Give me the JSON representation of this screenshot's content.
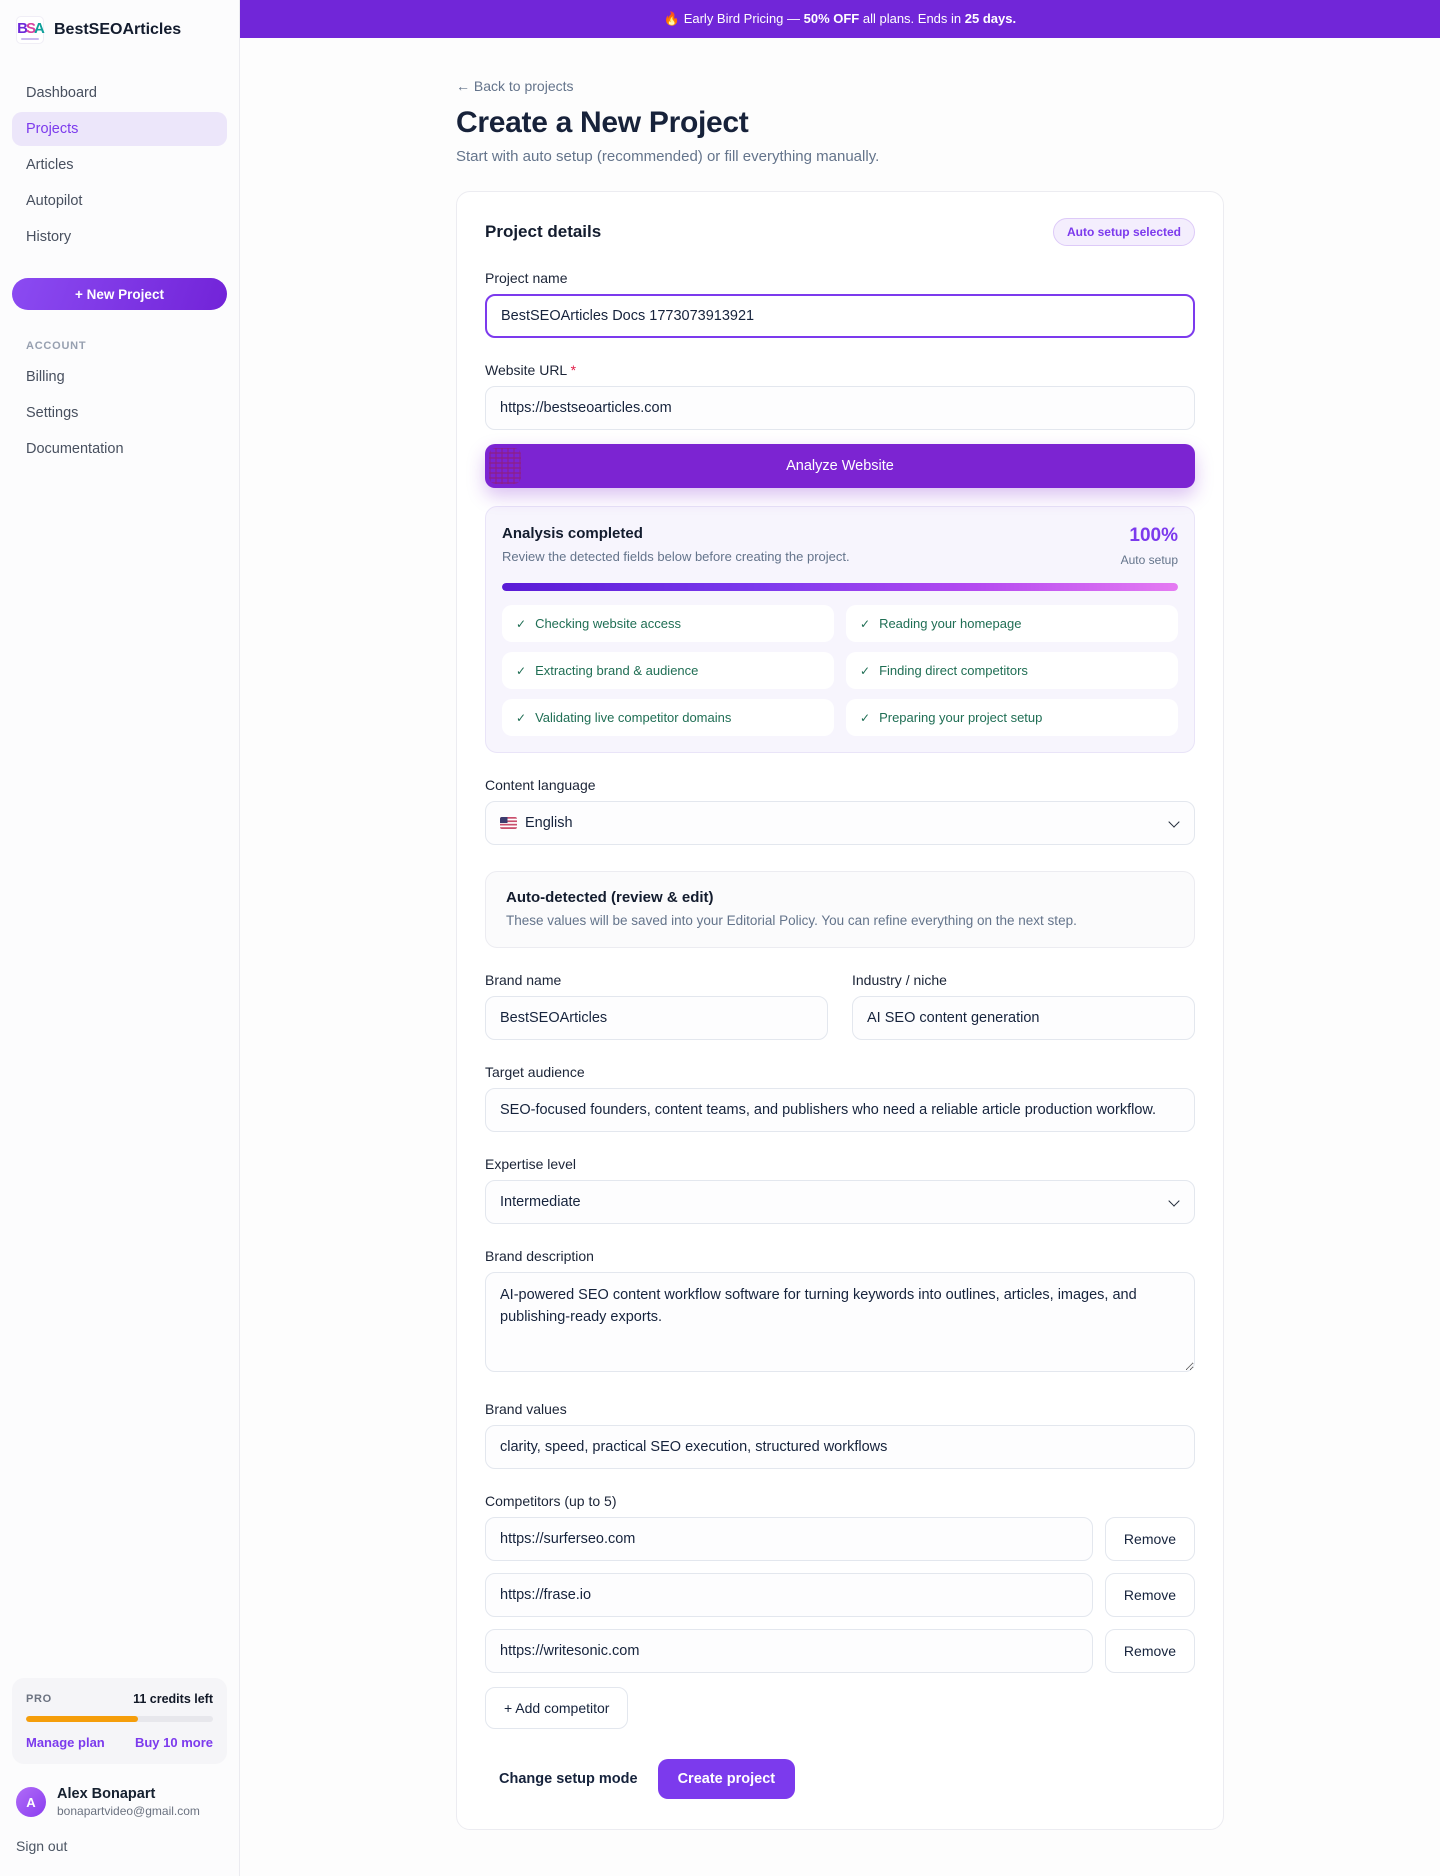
{
  "sidebar": {
    "logo_letters": [
      "B",
      "S",
      "A"
    ],
    "brand": "BestSEOArticles",
    "nav": [
      {
        "label": "Dashboard",
        "active": false
      },
      {
        "label": "Projects",
        "active": true
      },
      {
        "label": "Articles",
        "active": false
      },
      {
        "label": "Autopilot",
        "active": false
      },
      {
        "label": "History",
        "active": false
      }
    ],
    "new_project_label": "+ New Project",
    "account_heading": "ACCOUNT",
    "account_nav": [
      {
        "label": "Billing"
      },
      {
        "label": "Settings"
      },
      {
        "label": "Documentation"
      }
    ],
    "plan": {
      "tier": "PRO",
      "credits": "11 credits left",
      "progress_pct": 60,
      "manage_label": "Manage plan",
      "buy_label": "Buy 10 more"
    },
    "user": {
      "initial": "A",
      "name": "Alex Bonapart",
      "email": "bonapartvideo@gmail.com"
    },
    "sign_out_label": "Sign out"
  },
  "banner": {
    "prefix": "🔥 Early Bird Pricing — ",
    "bold_1": "50% OFF",
    "middle": " all plans. Ends in ",
    "bold_2": "25 days."
  },
  "page": {
    "back_link": "← Back to projects",
    "title": "Create a New Project",
    "subtitle": "Start with auto setup (recommended) or fill everything manually."
  },
  "card": {
    "title": "Project details",
    "badge": "Auto setup selected",
    "project_name": {
      "label": "Project name",
      "value": "BestSEOArticles Docs 1773073913921"
    },
    "website_url": {
      "label": "Website URL",
      "required_mark": "*",
      "value": "https://bestseoarticles.com"
    },
    "analyze_button_label": "Analyze Website",
    "analysis": {
      "title": "Analysis completed",
      "subtitle": "Review the detected fields below before creating the project.",
      "percent_label": "100%",
      "progress_pct": 100,
      "mode_label": "Auto setup",
      "check_glyph": "✓",
      "steps": [
        "Checking website access",
        "Reading your homepage",
        "Extracting brand & audience",
        "Finding direct competitors",
        "Validating live competitor domains",
        "Preparing your project setup"
      ]
    },
    "language": {
      "label": "Content language",
      "flag_icon": "us-flag",
      "value": "English"
    },
    "auto_detected": {
      "title": "Auto-detected (review & edit)",
      "description": "These values will be saved into your Editorial Policy. You can refine everything on the next step."
    },
    "brand_name": {
      "label": "Brand name",
      "value": "BestSEOArticles"
    },
    "industry": {
      "label": "Industry / niche",
      "value": "AI SEO content generation"
    },
    "target_audience": {
      "label": "Target audience",
      "value": "SEO-focused founders, content teams, and publishers who need a reliable article production workflow."
    },
    "expertise": {
      "label": "Expertise level",
      "value": "Intermediate"
    },
    "brand_description": {
      "label": "Brand description",
      "value": "AI-powered SEO content workflow software for turning keywords into outlines, articles, images, and publishing-ready exports."
    },
    "brand_values": {
      "label": "Brand values",
      "value": "clarity, speed, practical SEO execution, structured workflows"
    },
    "competitors": {
      "label": "Competitors (up to 5)",
      "remove_label": "Remove",
      "items": [
        "https://surferseo.com",
        "https://frase.io",
        "https://writesonic.com"
      ],
      "add_label": "+ Add competitor"
    },
    "footer": {
      "change_mode_label": "Change setup mode",
      "create_label": "Create project"
    }
  },
  "colors": {
    "accent": "#7c3aed",
    "banner_purple": "#7126d8",
    "analyze_purple": "#7c24d2",
    "success_green": "#1f6e54",
    "credits_orange": "#f59e0b"
  }
}
